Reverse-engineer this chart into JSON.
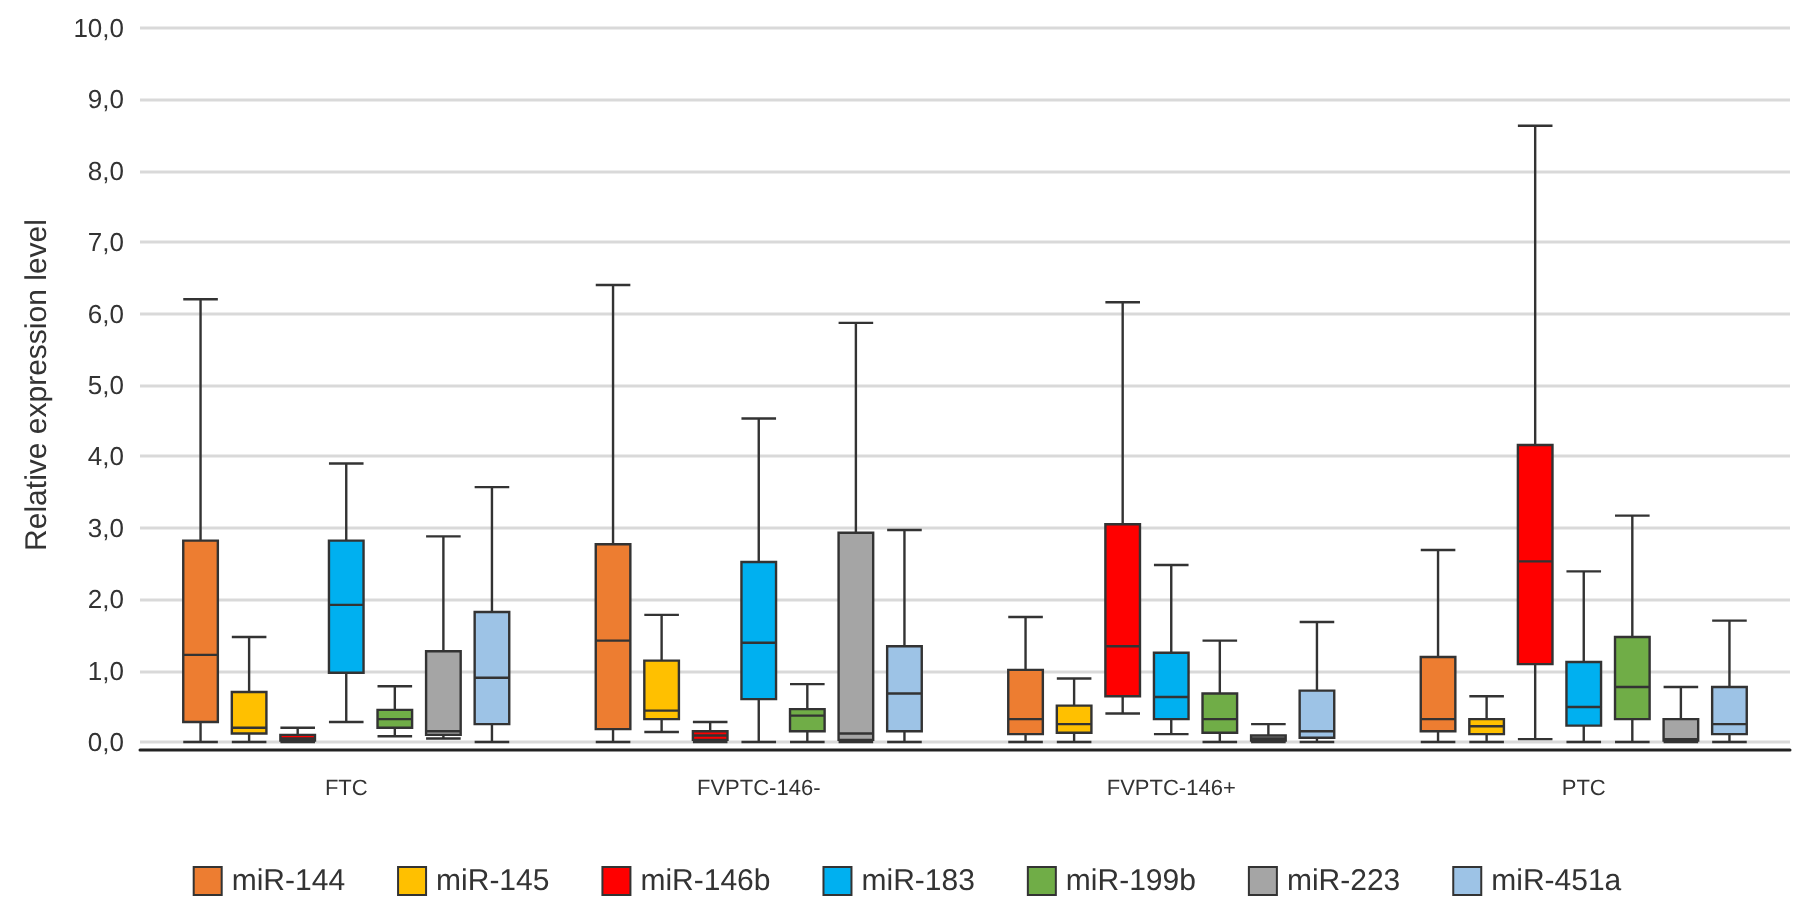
{
  "chart_data": {
    "type": "box",
    "ylabel": "Relative expression level",
    "categories": [
      "FTC",
      "FVPTC-146-",
      "FVPTC-146+",
      "PTC"
    ],
    "ylim": [
      0,
      10
    ],
    "yticks": [
      {
        "value": 0,
        "label": "0,0"
      },
      {
        "value": 1,
        "label": "1,0"
      },
      {
        "value": 2,
        "label": "2,0"
      },
      {
        "value": 3,
        "label": "3,0"
      },
      {
        "value": 4,
        "label": "4,0"
      },
      {
        "value": 5,
        "label": "5,0"
      },
      {
        "value": 6,
        "label": "6,0"
      },
      {
        "value": 7,
        "label": "7,0"
      },
      {
        "value": 8,
        "label": "8,0"
      },
      {
        "value": 9,
        "label": "9,0"
      },
      {
        "value": 10,
        "label": "10,0"
      }
    ],
    "grid": "y",
    "legend": "bottom",
    "series": [
      {
        "name": "miR-144",
        "color": "#ed7d31",
        "boxes": [
          {
            "low": 0,
            "q1": 0.28,
            "median": 1.22,
            "q3": 2.82,
            "high": 6.2
          },
          {
            "low": 0,
            "q1": 0.18,
            "median": 1.42,
            "q3": 2.77,
            "high": 6.4
          },
          {
            "low": 0,
            "q1": 0.11,
            "median": 0.32,
            "q3": 1.01,
            "high": 1.75
          },
          {
            "low": 0,
            "q1": 0.15,
            "median": 0.32,
            "q3": 1.19,
            "high": 2.69
          }
        ]
      },
      {
        "name": "miR-145",
        "color": "#ffc000",
        "boxes": [
          {
            "low": 0,
            "q1": 0.12,
            "median": 0.2,
            "q3": 0.7,
            "high": 1.47
          },
          {
            "low": 0.14,
            "q1": 0.32,
            "median": 0.44,
            "q3": 1.14,
            "high": 1.78
          },
          {
            "low": 0,
            "q1": 0.13,
            "median": 0.25,
            "q3": 0.51,
            "high": 0.89
          },
          {
            "low": 0,
            "q1": 0.11,
            "median": 0.22,
            "q3": 0.32,
            "high": 0.64
          }
        ]
      },
      {
        "name": "miR-146b",
        "color": "#ff0000",
        "boxes": [
          {
            "low": 0,
            "q1": 0.02,
            "median": 0.05,
            "q3": 0.1,
            "high": 0.2
          },
          {
            "low": 0,
            "q1": 0.03,
            "median": 0.09,
            "q3": 0.15,
            "high": 0.28
          },
          {
            "low": 0.4,
            "q1": 0.64,
            "median": 1.34,
            "q3": 3.05,
            "high": 6.16
          },
          {
            "low": 0.04,
            "q1": 1.09,
            "median": 2.53,
            "q3": 4.16,
            "high": 8.63
          }
        ]
      },
      {
        "name": "miR-183",
        "color": "#00b0f0",
        "boxes": [
          {
            "low": 0.28,
            "q1": 0.97,
            "median": 1.92,
            "q3": 2.82,
            "high": 3.9
          },
          {
            "low": 0,
            "q1": 0.6,
            "median": 1.39,
            "q3": 2.52,
            "high": 4.53
          },
          {
            "low": 0.11,
            "q1": 0.32,
            "median": 0.63,
            "q3": 1.25,
            "high": 2.48
          },
          {
            "low": 0,
            "q1": 0.23,
            "median": 0.49,
            "q3": 1.12,
            "high": 2.39
          }
        ]
      },
      {
        "name": "miR-199b",
        "color": "#70ad47",
        "boxes": [
          {
            "low": 0.08,
            "q1": 0.2,
            "median": 0.32,
            "q3": 0.45,
            "high": 0.78
          },
          {
            "low": 0,
            "q1": 0.15,
            "median": 0.37,
            "q3": 0.46,
            "high": 0.81
          },
          {
            "low": 0,
            "q1": 0.13,
            "median": 0.32,
            "q3": 0.68,
            "high": 1.42
          },
          {
            "low": 0,
            "q1": 0.32,
            "median": 0.77,
            "q3": 1.47,
            "high": 3.17
          }
        ]
      },
      {
        "name": "miR-223",
        "color": "#a5a5a5",
        "boxes": [
          {
            "low": 0.05,
            "q1": 0.1,
            "median": 0.15,
            "q3": 1.27,
            "high": 2.88
          },
          {
            "low": 0,
            "q1": 0.03,
            "median": 0.12,
            "q3": 2.93,
            "high": 5.87
          },
          {
            "low": 0,
            "q1": 0.02,
            "median": 0.05,
            "q3": 0.09,
            "high": 0.25
          },
          {
            "low": 0,
            "q1": 0.02,
            "median": 0.04,
            "q3": 0.32,
            "high": 0.77
          }
        ]
      },
      {
        "name": "miR-451a",
        "color": "#9dc3e6",
        "boxes": [
          {
            "low": 0,
            "q1": 0.25,
            "median": 0.9,
            "q3": 1.82,
            "high": 3.57
          },
          {
            "low": 0,
            "q1": 0.15,
            "median": 0.68,
            "q3": 1.34,
            "high": 2.97
          },
          {
            "low": 0,
            "q1": 0.06,
            "median": 0.15,
            "q3": 0.72,
            "high": 1.68
          },
          {
            "low": 0,
            "q1": 0.11,
            "median": 0.25,
            "q3": 0.77,
            "high": 1.7
          }
        ]
      }
    ]
  }
}
